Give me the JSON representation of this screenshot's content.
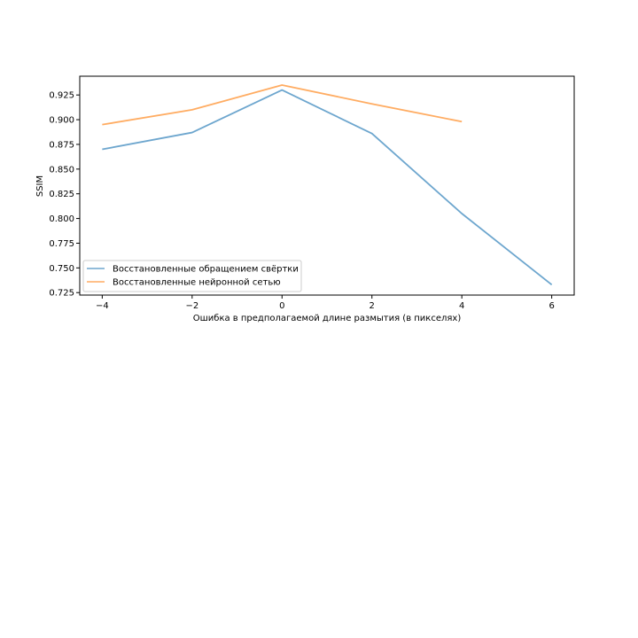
{
  "chart_data": {
    "type": "line",
    "title": "",
    "xlabel": "Ошибка в предполагаемой длине размытия (в пикселях)",
    "ylabel": "SSIM",
    "xlim": [
      -4.5,
      6.5
    ],
    "ylim": [
      0.7225,
      0.944
    ],
    "xticks": [
      -4,
      -2,
      0,
      2,
      4,
      6
    ],
    "xtick_labels": [
      "−4",
      "−2",
      "0",
      "2",
      "4",
      "6"
    ],
    "yticks": [
      0.725,
      0.75,
      0.775,
      0.8,
      0.825,
      0.85,
      0.875,
      0.9,
      0.925
    ],
    "ytick_labels": [
      "0.725",
      "0.750",
      "0.775",
      "0.800",
      "0.825",
      "0.850",
      "0.875",
      "0.900",
      "0.925"
    ],
    "grid": false,
    "legend_position": "lower-left",
    "series": [
      {
        "name": "Восстановленные обращением свёртки",
        "color": "#1f77b4",
        "x": [
          -4,
          -2,
          0,
          2,
          4,
          6
        ],
        "y": [
          0.87,
          0.887,
          0.93,
          0.886,
          0.805,
          0.733
        ]
      },
      {
        "name": "Восстановленные нейронной сетью",
        "color": "#ff7f0e",
        "x": [
          -4,
          -2,
          0,
          2,
          4
        ],
        "y": [
          0.895,
          0.91,
          0.935,
          0.916,
          0.898
        ]
      }
    ]
  }
}
